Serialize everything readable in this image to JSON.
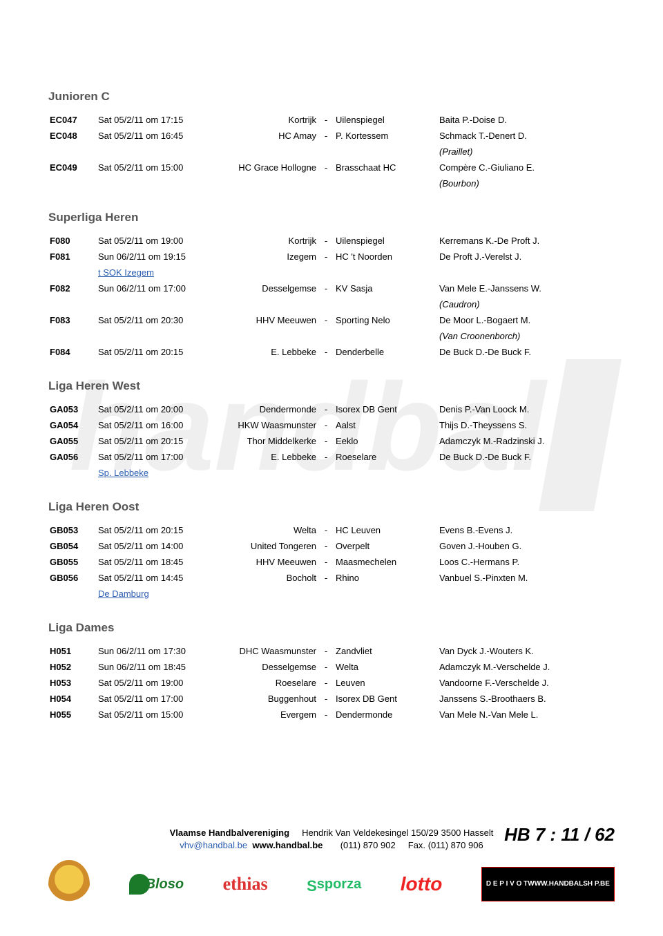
{
  "sections": [
    {
      "title": "Junioren C",
      "rows": [
        {
          "code": "EC047",
          "dt": "Sat 05/2/11 om 17:15",
          "home": "Kortrijk",
          "away": "Uilenspiegel",
          "ref": "Baita P.-Doise D."
        },
        {
          "code": "EC048",
          "dt": "Sat 05/2/11 om 16:45",
          "home": "HC Amay",
          "away": "P. Kortessem",
          "ref": "Schmack T.-Denert D."
        },
        {
          "code": "",
          "dt": "",
          "home": "",
          "away": "",
          "ref": "(Praillet)",
          "italic": true
        },
        {
          "code": "EC049",
          "dt": "Sat 05/2/11 om 15:00",
          "home": "HC Grace Hollogne",
          "away": "Brasschaat HC",
          "ref": "Compère C.-Giuliano E."
        },
        {
          "code": "",
          "dt": "",
          "home": "",
          "away": "",
          "ref": "(Bourbon)",
          "italic": true
        }
      ]
    },
    {
      "title": "Superliga Heren",
      "rows": [
        {
          "code": "F080",
          "dt": "Sat 05/2/11 om 19:00",
          "home": "Kortrijk",
          "away": "Uilenspiegel",
          "ref": "Kerremans K.-De Proft J."
        },
        {
          "code": "F081",
          "dt": "Sun 06/2/11 om 19:15",
          "home": "Izegem",
          "away": "HC 't Noorden",
          "ref": "De Proft J.-Verelst J."
        },
        {
          "code": "",
          "dt": "t SOK Izegem",
          "home": "",
          "away": "",
          "ref": "",
          "link": true
        },
        {
          "code": "F082",
          "dt": "Sun 06/2/11 om 17:00",
          "home": "Desselgemse",
          "away": "KV Sasja",
          "ref": "Van Mele E.-Janssens W."
        },
        {
          "code": "",
          "dt": "",
          "home": "",
          "away": "",
          "ref": "(Caudron)",
          "italic": true
        },
        {
          "code": "F083",
          "dt": "Sat 05/2/11 om 20:30",
          "home": "HHV Meeuwen",
          "away": "Sporting Nelo",
          "ref": "De Moor L.-Bogaert M."
        },
        {
          "code": "",
          "dt": "",
          "home": "",
          "away": "",
          "ref": "(Van Croonenborch)",
          "italic": true
        },
        {
          "code": "F084",
          "dt": "Sat 05/2/11 om 20:15",
          "home": "E. Lebbeke",
          "away": "Denderbelle",
          "ref": "De Buck D.-De Buck F."
        }
      ]
    },
    {
      "title": "Liga Heren West",
      "rows": [
        {
          "code": "GA053",
          "dt": "Sat 05/2/11 om 20:00",
          "home": "Dendermonde",
          "away": "Isorex DB Gent",
          "ref": "Denis P.-Van Loock M."
        },
        {
          "code": "GA054",
          "dt": "Sat 05/2/11 om 16:00",
          "home": "HKW Waasmunster",
          "away": "Aalst",
          "ref": "Thijs D.-Theyssens S."
        },
        {
          "code": "GA055",
          "dt": "Sat 05/2/11 om 20:15",
          "home": "Thor Middelkerke",
          "away": "Eeklo",
          "ref": "Adamczyk M.-Radzinski J."
        },
        {
          "code": "GA056",
          "dt": "Sat 05/2/11 om 17:00",
          "home": "E. Lebbeke",
          "away": "Roeselare",
          "ref": "De Buck D.-De Buck F."
        },
        {
          "code": "",
          "dt": "Sp. Lebbeke",
          "home": "",
          "away": "",
          "ref": "",
          "link": true
        }
      ]
    },
    {
      "title": "Liga Heren Oost",
      "rows": [
        {
          "code": "GB053",
          "dt": "Sat 05/2/11 om 20:15",
          "home": "Welta",
          "away": "HC Leuven",
          "ref": "Evens B.-Evens J."
        },
        {
          "code": "GB054",
          "dt": "Sat 05/2/11 om 14:00",
          "home": "United Tongeren",
          "away": "Overpelt",
          "ref": "Goven J.-Houben G."
        },
        {
          "code": "GB055",
          "dt": "Sat 05/2/11 om 18:45",
          "home": "HHV Meeuwen",
          "away": "Maasmechelen",
          "ref": "Loos C.-Hermans P."
        },
        {
          "code": "GB056",
          "dt": "Sat 05/2/11 om 14:45",
          "home": "Bocholt",
          "away": "Rhino",
          "ref": "Vanbuel S.-Pinxten M."
        },
        {
          "code": "",
          "dt": "De Damburg",
          "home": "",
          "away": "",
          "ref": "",
          "link": true
        }
      ]
    },
    {
      "title": "Liga Dames",
      "rows": [
        {
          "code": "H051",
          "dt": "Sun 06/2/11 om 17:30",
          "home": "DHC Waasmunster",
          "away": "Zandvliet",
          "ref": "Van Dyck J.-Wouters K."
        },
        {
          "code": "H052",
          "dt": "Sun 06/2/11 om 18:45",
          "home": "Desselgemse",
          "away": "Welta",
          "ref": "Adamczyk M.-Verschelde J."
        },
        {
          "code": "H053",
          "dt": "Sat 05/2/11 om 19:00",
          "home": "Roeselare",
          "away": "Leuven",
          "ref": "Vandoorne F.-Verschelde J."
        },
        {
          "code": "H054",
          "dt": "Sat 05/2/11 om 17:00",
          "home": "Buggenhout",
          "away": "Isorex DB Gent",
          "ref": "Janssens S.-Broothaers B."
        },
        {
          "code": "H055",
          "dt": "Sat 05/2/11 om 15:00",
          "home": "Evergem",
          "away": "Dendermonde",
          "ref": "Van Mele N.-Van Mele L."
        }
      ]
    }
  ],
  "footer": {
    "org": "Vlaamse Handbalvereniging",
    "address": "Hendrik Van Veldekesingel 150/29 3500 Hasselt",
    "email": "vhv@handbal.be",
    "web": "www.handbal.be",
    "phone": "(011) 870 902",
    "fax_label": "Fax.",
    "fax": "(011) 870 906",
    "page": "HB 7 : 11 / 62",
    "logos": {
      "bloso": "Bloso",
      "ethias": "ethias",
      "sporza": "sporza",
      "lotto": "lotto",
      "pivot_line1": "D E  P I V O T",
      "pivot_line2": "WWW.HANDBALSH   P.BE"
    }
  },
  "colors": {
    "title": "#555555",
    "link": "#2a5db0",
    "text": "#000000"
  }
}
